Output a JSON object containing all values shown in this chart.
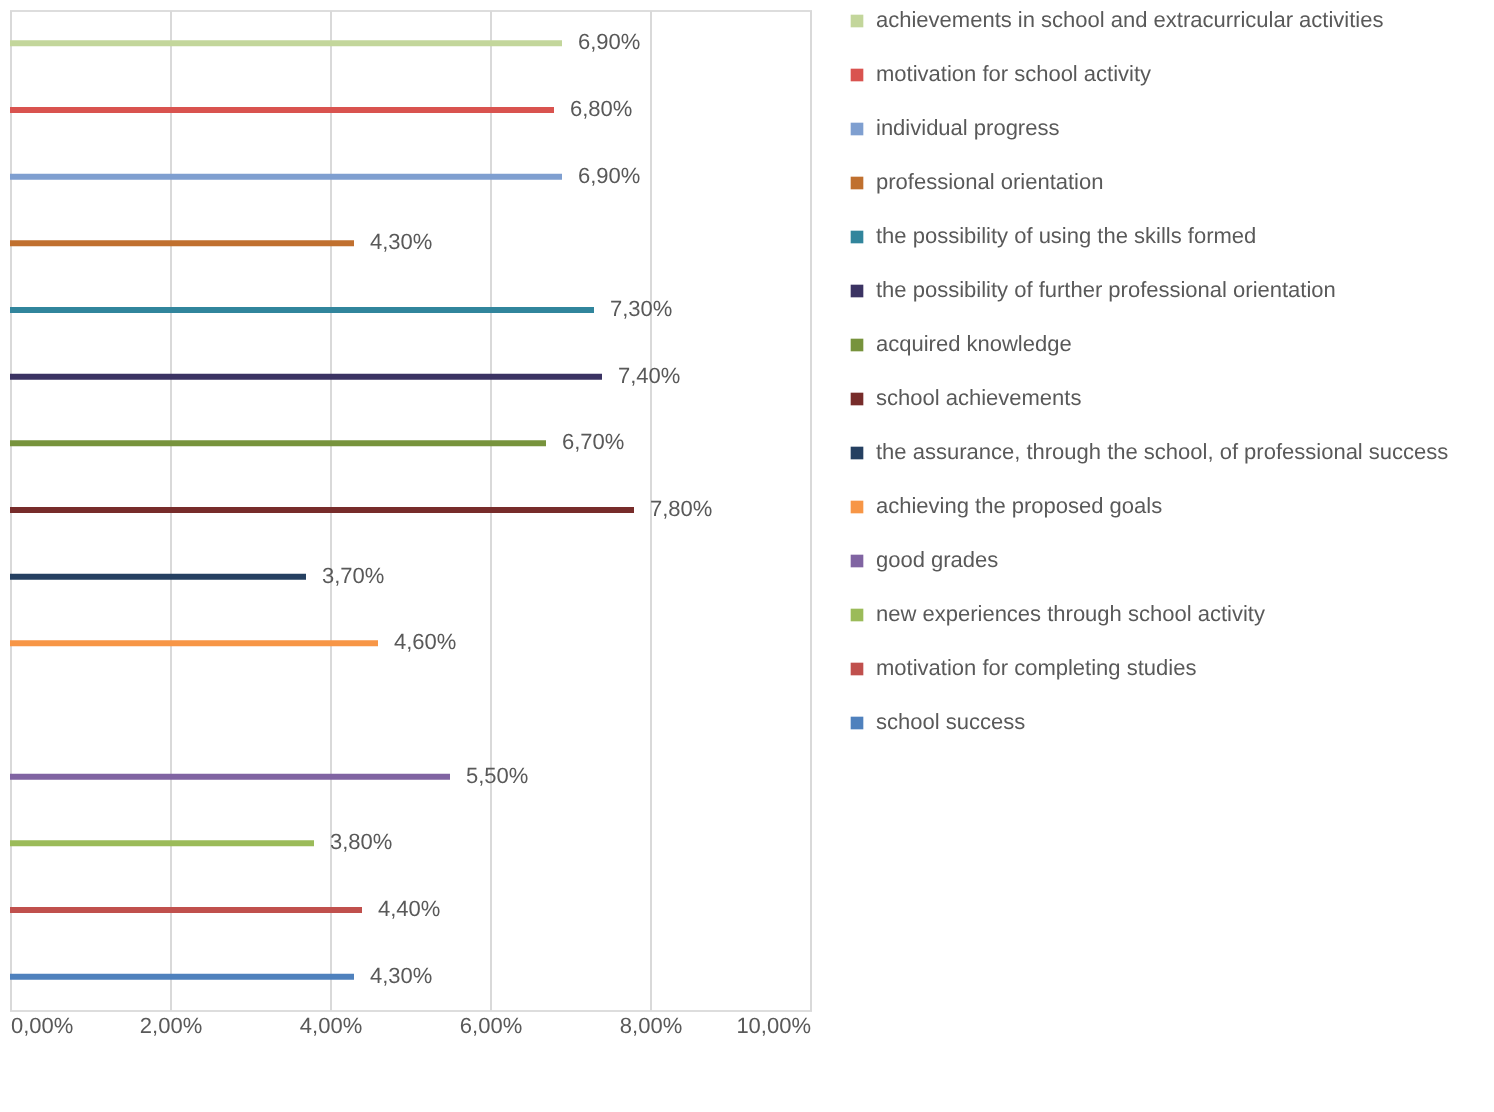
{
  "chart_data": {
    "type": "bar",
    "orientation": "horizontal",
    "categories": [
      null,
      null,
      null,
      null,
      null,
      null,
      null,
      null,
      null,
      null,
      null,
      null,
      null,
      null,
      null
    ],
    "series": [
      {
        "name": "achievements in school and extracurricular activities",
        "color": "#c3d69b",
        "values": [
          6.9,
          null,
          null,
          null,
          null,
          null,
          null,
          null,
          null,
          null,
          null,
          null,
          null,
          null,
          null
        ],
        "value_labels": [
          "6,90%",
          null,
          null,
          null,
          null,
          null,
          null,
          null,
          null,
          null,
          null,
          null,
          null,
          null,
          null
        ]
      },
      {
        "name": "motivation for school activity",
        "color": "#d9534f",
        "values": [
          null,
          6.8,
          null,
          null,
          null,
          null,
          null,
          null,
          null,
          null,
          null,
          null,
          null,
          null,
          null
        ],
        "value_labels": [
          null,
          "6,80%",
          null,
          null,
          null,
          null,
          null,
          null,
          null,
          null,
          null,
          null,
          null,
          null,
          null
        ]
      },
      {
        "name": "individual progress",
        "color": "#7f9fd0",
        "values": [
          null,
          null,
          6.9,
          null,
          null,
          null,
          null,
          null,
          null,
          null,
          null,
          null,
          null,
          null,
          null
        ],
        "value_labels": [
          null,
          null,
          "6,90%",
          null,
          null,
          null,
          null,
          null,
          null,
          null,
          null,
          null,
          null,
          null,
          null
        ]
      },
      {
        "name": "professional orientation",
        "color": "#c0702f",
        "values": [
          null,
          null,
          null,
          4.3,
          null,
          null,
          null,
          null,
          null,
          null,
          null,
          null,
          null,
          null,
          null
        ],
        "value_labels": [
          null,
          null,
          null,
          "4,30%",
          null,
          null,
          null,
          null,
          null,
          null,
          null,
          null,
          null,
          null,
          null
        ]
      },
      {
        "name": "the possibility of using the skills formed",
        "color": "#31859c",
        "values": [
          null,
          null,
          null,
          null,
          7.3,
          null,
          null,
          null,
          null,
          null,
          null,
          null,
          null,
          null,
          null
        ],
        "value_labels": [
          null,
          null,
          null,
          null,
          "7,30%",
          null,
          null,
          null,
          null,
          null,
          null,
          null,
          null,
          null,
          null
        ]
      },
      {
        "name": "the possibility of further professional orientation",
        "color": "#3b3363",
        "values": [
          null,
          null,
          null,
          null,
          null,
          7.4,
          null,
          null,
          null,
          null,
          null,
          null,
          null,
          null,
          null
        ],
        "value_labels": [
          null,
          null,
          null,
          null,
          null,
          "7,40%",
          null,
          null,
          null,
          null,
          null,
          null,
          null,
          null,
          null
        ]
      },
      {
        "name": "acquired knowledge",
        "color": "#77933c",
        "values": [
          null,
          null,
          null,
          null,
          null,
          null,
          6.7,
          null,
          null,
          null,
          null,
          null,
          null,
          null,
          null
        ],
        "value_labels": [
          null,
          null,
          null,
          null,
          null,
          null,
          "6,70%",
          null,
          null,
          null,
          null,
          null,
          null,
          null,
          null
        ]
      },
      {
        "name": "school achievements",
        "color": "#772c2a",
        "values": [
          null,
          null,
          null,
          null,
          null,
          null,
          null,
          7.8,
          null,
          null,
          null,
          null,
          null,
          null,
          null
        ],
        "value_labels": [
          null,
          null,
          null,
          null,
          null,
          null,
          null,
          "7,80%",
          null,
          null,
          null,
          null,
          null,
          null,
          null
        ]
      },
      {
        "name": "the assurance, through the school, of professional success",
        "color": "#254061",
        "values": [
          null,
          null,
          null,
          null,
          null,
          null,
          null,
          null,
          3.7,
          null,
          null,
          null,
          null,
          null,
          null
        ],
        "value_labels": [
          null,
          null,
          null,
          null,
          null,
          null,
          null,
          null,
          "3,70%",
          null,
          null,
          null,
          null,
          null,
          null
        ]
      },
      {
        "name": "achieving the proposed goals",
        "color": "#f79646",
        "values": [
          null,
          null,
          null,
          null,
          null,
          null,
          null,
          null,
          null,
          4.6,
          null,
          null,
          null,
          null,
          null
        ],
        "value_labels": [
          null,
          null,
          null,
          null,
          null,
          null,
          null,
          null,
          null,
          "4,60%",
          null,
          null,
          null,
          null,
          null
        ]
      },
      {
        "name": "good grades",
        "color": "#8064a2",
        "values": [
          null,
          null,
          null,
          null,
          null,
          null,
          null,
          null,
          null,
          null,
          null,
          5.5,
          null,
          null,
          null
        ],
        "value_labels": [
          null,
          null,
          null,
          null,
          null,
          null,
          null,
          null,
          null,
          null,
          null,
          "5,50%",
          null,
          null,
          null
        ]
      },
      {
        "name": "new experiences through school activity",
        "color": "#9bbb59",
        "values": [
          null,
          null,
          null,
          null,
          null,
          null,
          null,
          null,
          null,
          null,
          null,
          null,
          3.8,
          null,
          null
        ],
        "value_labels": [
          null,
          null,
          null,
          null,
          null,
          null,
          null,
          null,
          null,
          null,
          null,
          null,
          "3,80%",
          null,
          null
        ]
      },
      {
        "name": "motivation for completing studies",
        "color": "#c0504d",
        "values": [
          null,
          null,
          null,
          null,
          null,
          null,
          null,
          null,
          null,
          null,
          null,
          null,
          null,
          4.4,
          null
        ],
        "value_labels": [
          null,
          null,
          null,
          null,
          null,
          null,
          null,
          null,
          null,
          null,
          null,
          null,
          null,
          "4,40%",
          null
        ]
      },
      {
        "name": "school success",
        "color": "#4f81bd",
        "values": [
          null,
          null,
          null,
          null,
          null,
          null,
          null,
          null,
          null,
          null,
          null,
          null,
          null,
          null,
          4.3
        ],
        "value_labels": [
          null,
          null,
          null,
          null,
          null,
          null,
          null,
          null,
          null,
          null,
          null,
          null,
          null,
          null,
          "4,30%"
        ]
      }
    ],
    "xlim": [
      0,
      10
    ],
    "xticks": [
      {
        "value": 0,
        "label": "0,00%"
      },
      {
        "value": 2,
        "label": "2,00%"
      },
      {
        "value": 4,
        "label": "4,00%"
      },
      {
        "value": 6,
        "label": "6,00%"
      },
      {
        "value": 8,
        "label": "8,00%"
      },
      {
        "value": 10,
        "label": "10,00%"
      }
    ],
    "grid": "x",
    "legend": "right",
    "tick_labels": "x"
  }
}
